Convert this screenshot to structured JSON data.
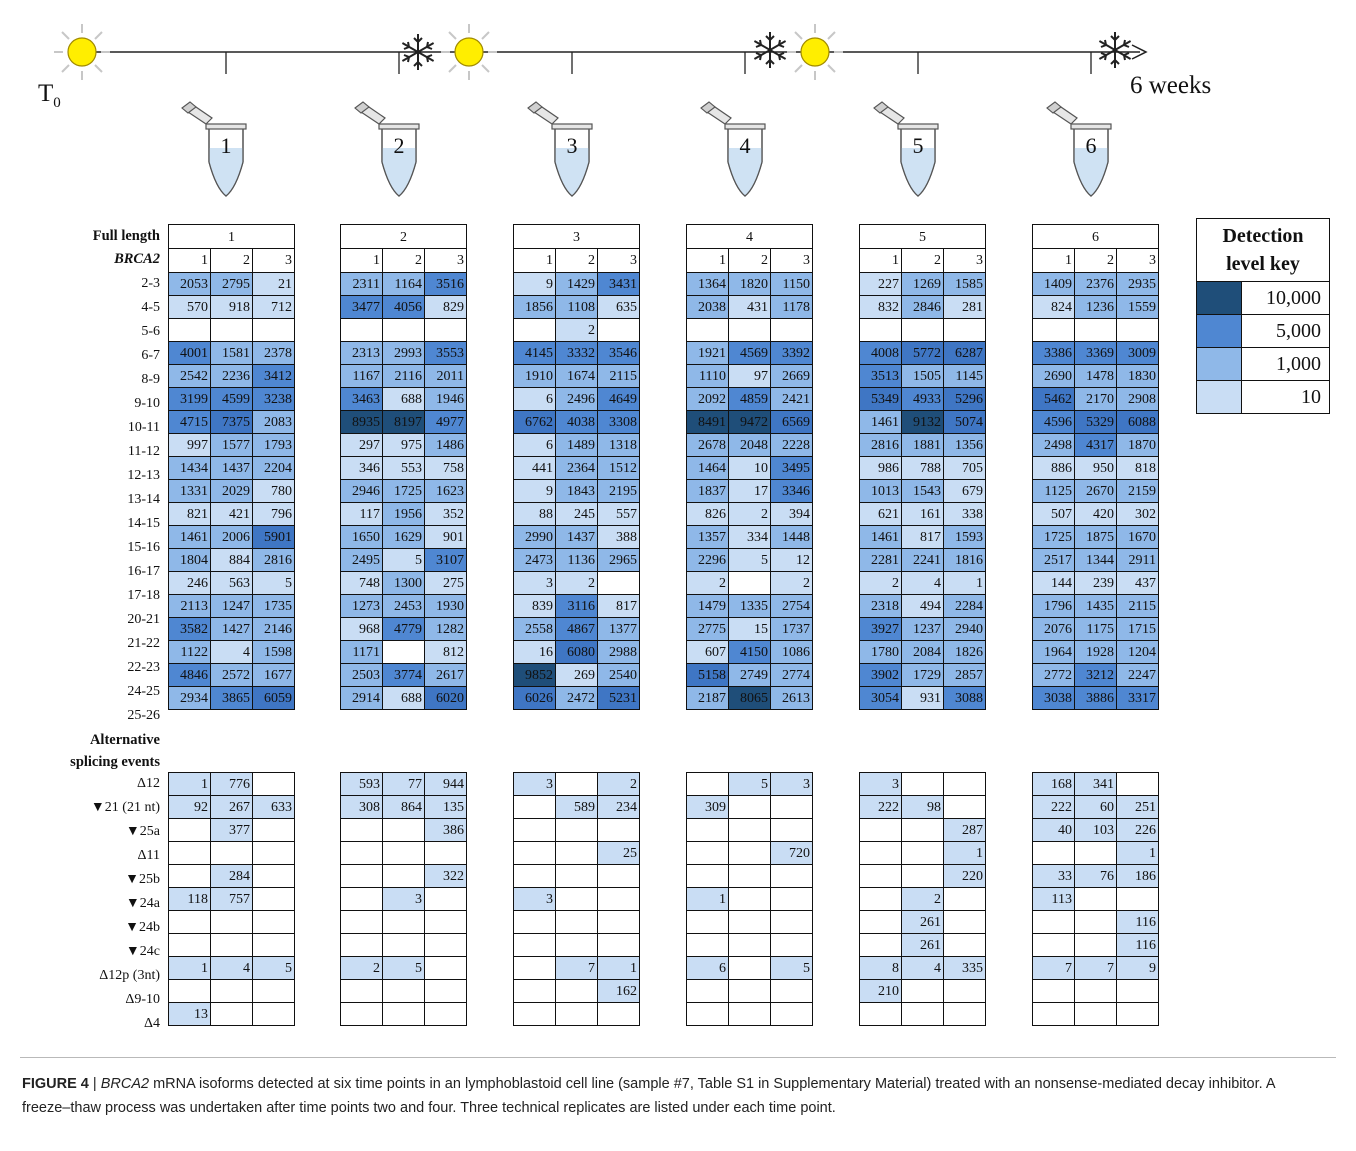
{
  "timeline": {
    "start_label": "T",
    "start_sub": "0",
    "end_label": "6 weeks",
    "tube_labels": [
      "1",
      "2",
      "3",
      "4",
      "5",
      "6"
    ],
    "icons": [
      "sun-icon",
      "snowflake-icon",
      "tube-icon",
      "arrow-icon"
    ]
  },
  "table": {
    "section_full_length": [
      "Full length",
      "BRCA2"
    ],
    "section_alt": [
      "Alternative",
      "splicing events"
    ],
    "groups": [
      "1",
      "2",
      "3",
      "4",
      "5",
      "6"
    ],
    "replicates": [
      "1",
      "2",
      "3"
    ],
    "full_rows": [
      {
        "label": "2-3",
        "values": [
          [
            "2053",
            "2795",
            "21"
          ],
          [
            "2311",
            "1164",
            "3516"
          ],
          [
            "9",
            "1429",
            "3431"
          ],
          [
            "1364",
            "1820",
            "1150"
          ],
          [
            "227",
            "1269",
            "1585"
          ],
          [
            "1409",
            "2376",
            "2935"
          ]
        ]
      },
      {
        "label": "4-5",
        "values": [
          [
            "570",
            "918",
            "712"
          ],
          [
            "3477",
            "4056",
            "829"
          ],
          [
            "1856",
            "1108",
            "635"
          ],
          [
            "2038",
            "431",
            "1178"
          ],
          [
            "832",
            "2846",
            "281"
          ],
          [
            "824",
            "1236",
            "1559"
          ]
        ]
      },
      {
        "label": "5-6",
        "values": [
          [
            "",
            "",
            ""
          ],
          [
            "",
            "",
            ""
          ],
          [
            "",
            "2",
            ""
          ],
          [
            "",
            "",
            ""
          ],
          [
            "",
            "",
            ""
          ],
          [
            "",
            "",
            ""
          ]
        ]
      },
      {
        "label": "6-7",
        "values": [
          [
            "4001",
            "1581",
            "2378"
          ],
          [
            "2313",
            "2993",
            "3553"
          ],
          [
            "4145",
            "3332",
            "3546"
          ],
          [
            "1921",
            "4569",
            "3392"
          ],
          [
            "4008",
            "5772",
            "6287"
          ],
          [
            "3386",
            "3369",
            "3009"
          ]
        ]
      },
      {
        "label": "8-9",
        "values": [
          [
            "2542",
            "2236",
            "3412"
          ],
          [
            "1167",
            "2116",
            "2011"
          ],
          [
            "1910",
            "1674",
            "2115"
          ],
          [
            "1110",
            "97",
            "2669"
          ],
          [
            "3513",
            "1505",
            "1145"
          ],
          [
            "2690",
            "1478",
            "1830"
          ]
        ]
      },
      {
        "label": "9-10",
        "values": [
          [
            "3199",
            "4599",
            "3238"
          ],
          [
            "3463",
            "688",
            "1946"
          ],
          [
            "6",
            "2496",
            "4649"
          ],
          [
            "2092",
            "4859",
            "2421"
          ],
          [
            "5349",
            "4933",
            "5296"
          ],
          [
            "5462",
            "2170",
            "2908"
          ]
        ]
      },
      {
        "label": "10-11",
        "values": [
          [
            "4715",
            "7375",
            "2083"
          ],
          [
            "8935",
            "8197",
            "4977"
          ],
          [
            "6762",
            "4038",
            "3308"
          ],
          [
            "8491",
            "9472",
            "6569"
          ],
          [
            "1461",
            "9132",
            "5074"
          ],
          [
            "4596",
            "5329",
            "6088"
          ]
        ]
      },
      {
        "label": "11-12",
        "values": [
          [
            "997",
            "1577",
            "1793"
          ],
          [
            "297",
            "975",
            "1486"
          ],
          [
            "6",
            "1489",
            "1318"
          ],
          [
            "2678",
            "2048",
            "2228"
          ],
          [
            "2816",
            "1881",
            "1356"
          ],
          [
            "2498",
            "4317",
            "1870"
          ]
        ]
      },
      {
        "label": "12-13",
        "values": [
          [
            "1434",
            "1437",
            "2204"
          ],
          [
            "346",
            "553",
            "758"
          ],
          [
            "441",
            "2364",
            "1512"
          ],
          [
            "1464",
            "10",
            "3495"
          ],
          [
            "986",
            "788",
            "705"
          ],
          [
            "886",
            "950",
            "818"
          ]
        ]
      },
      {
        "label": "13-14",
        "values": [
          [
            "1331",
            "2029",
            "780"
          ],
          [
            "2946",
            "1725",
            "1623"
          ],
          [
            "9",
            "1843",
            "2195"
          ],
          [
            "1837",
            "17",
            "3346"
          ],
          [
            "1013",
            "1543",
            "679"
          ],
          [
            "1125",
            "2670",
            "2159"
          ]
        ]
      },
      {
        "label": "14-15",
        "values": [
          [
            "821",
            "421",
            "796"
          ],
          [
            "117",
            "1956",
            "352"
          ],
          [
            "88",
            "245",
            "557"
          ],
          [
            "826",
            "2",
            "394"
          ],
          [
            "621",
            "161",
            "338"
          ],
          [
            "507",
            "420",
            "302"
          ]
        ]
      },
      {
        "label": "15-16",
        "values": [
          [
            "1461",
            "2006",
            "5901"
          ],
          [
            "1650",
            "1629",
            "901"
          ],
          [
            "2990",
            "1437",
            "388"
          ],
          [
            "1357",
            "334",
            "1448"
          ],
          [
            "1461",
            "817",
            "1593"
          ],
          [
            "1725",
            "1875",
            "1670"
          ]
        ]
      },
      {
        "label": "16-17",
        "values": [
          [
            "1804",
            "884",
            "2816"
          ],
          [
            "2495",
            "5",
            "3107"
          ],
          [
            "2473",
            "1136",
            "2965"
          ],
          [
            "2296",
            "5",
            "12"
          ],
          [
            "2281",
            "2241",
            "1816"
          ],
          [
            "2517",
            "1344",
            "2911"
          ]
        ]
      },
      {
        "label": "17-18",
        "values": [
          [
            "246",
            "563",
            "5"
          ],
          [
            "748",
            "1300",
            "275"
          ],
          [
            "3",
            "2",
            ""
          ],
          [
            "2",
            "",
            "2"
          ],
          [
            "2",
            "4",
            "1"
          ],
          [
            "144",
            "239",
            "437"
          ]
        ]
      },
      {
        "label": "20-21",
        "values": [
          [
            "2113",
            "1247",
            "1735"
          ],
          [
            "1273",
            "2453",
            "1930"
          ],
          [
            "839",
            "3116",
            "817"
          ],
          [
            "1479",
            "1335",
            "2754"
          ],
          [
            "2318",
            "494",
            "2284"
          ],
          [
            "1796",
            "1435",
            "2115"
          ]
        ]
      },
      {
        "label": "21-22",
        "values": [
          [
            "3582",
            "1427",
            "2146"
          ],
          [
            "968",
            "4779",
            "1282"
          ],
          [
            "2558",
            "4867",
            "1377"
          ],
          [
            "2775",
            "15",
            "1737"
          ],
          [
            "3927",
            "1237",
            "2940"
          ],
          [
            "2076",
            "1175",
            "1715"
          ]
        ]
      },
      {
        "label": "22-23",
        "values": [
          [
            "1122",
            "4",
            "1598"
          ],
          [
            "1171",
            "",
            "812"
          ],
          [
            "16",
            "6080",
            "2988"
          ],
          [
            "607",
            "4150",
            "1086"
          ],
          [
            "1780",
            "2084",
            "1826"
          ],
          [
            "1964",
            "1928",
            "1204"
          ]
        ]
      },
      {
        "label": "24-25",
        "values": [
          [
            "4846",
            "2572",
            "1677"
          ],
          [
            "2503",
            "3774",
            "2617"
          ],
          [
            "9852",
            "269",
            "2540"
          ],
          [
            "5158",
            "2749",
            "2774"
          ],
          [
            "3902",
            "1729",
            "2857"
          ],
          [
            "2772",
            "3212",
            "2247"
          ]
        ]
      },
      {
        "label": "25-26",
        "values": [
          [
            "2934",
            "3865",
            "6059"
          ],
          [
            "2914",
            "688",
            "6020"
          ],
          [
            "6026",
            "2472",
            "5231"
          ],
          [
            "2187",
            "8065",
            "2613"
          ],
          [
            "3054",
            "931",
            "3088"
          ],
          [
            "3038",
            "3886",
            "3317"
          ]
        ]
      }
    ],
    "alt_rows": [
      {
        "label": "Δ12",
        "values": [
          [
            "1",
            "776",
            ""
          ],
          [
            "593",
            "77",
            "944"
          ],
          [
            "3",
            "",
            "2"
          ],
          [
            "",
            "5",
            "3"
          ],
          [
            "3",
            "",
            ""
          ],
          [
            "168",
            "341",
            ""
          ]
        ]
      },
      {
        "label": "▼21 (21 nt)",
        "values": [
          [
            "92",
            "267",
            "633"
          ],
          [
            "308",
            "864",
            "135"
          ],
          [
            "",
            "589",
            "234"
          ],
          [
            "309",
            "",
            ""
          ],
          [
            "222",
            "98",
            ""
          ],
          [
            "222",
            "60",
            "251"
          ]
        ]
      },
      {
        "label": "▼25a",
        "values": [
          [
            "",
            "377",
            ""
          ],
          [
            "",
            "",
            "386"
          ],
          [
            "",
            "",
            ""
          ],
          [
            "",
            "",
            ""
          ],
          [
            "",
            "",
            "287"
          ],
          [
            "40",
            "103",
            "226"
          ]
        ]
      },
      {
        "label": "Δ11",
        "values": [
          [
            "",
            "",
            ""
          ],
          [
            "",
            "",
            ""
          ],
          [
            "",
            "",
            "25"
          ],
          [
            "",
            "",
            "720"
          ],
          [
            "",
            "",
            "1"
          ],
          [
            "",
            "",
            "1"
          ]
        ]
      },
      {
        "label": "▼25b",
        "values": [
          [
            "",
            "284",
            ""
          ],
          [
            "",
            "",
            "322"
          ],
          [
            "",
            "",
            ""
          ],
          [
            "",
            "",
            ""
          ],
          [
            "",
            "",
            "220"
          ],
          [
            "33",
            "76",
            "186"
          ]
        ]
      },
      {
        "label": "▼24a",
        "values": [
          [
            "118",
            "757",
            ""
          ],
          [
            "",
            "3",
            ""
          ],
          [
            "3",
            "",
            ""
          ],
          [
            "1",
            "",
            ""
          ],
          [
            "",
            "2",
            ""
          ],
          [
            "113",
            "",
            ""
          ]
        ]
      },
      {
        "label": "▼24b",
        "values": [
          [
            "",
            "",
            ""
          ],
          [
            "",
            "",
            ""
          ],
          [
            "",
            "",
            ""
          ],
          [
            "",
            "",
            ""
          ],
          [
            "",
            "261",
            ""
          ],
          [
            "",
            "",
            "116"
          ]
        ]
      },
      {
        "label": "▼24c",
        "values": [
          [
            "",
            "",
            ""
          ],
          [
            "",
            "",
            ""
          ],
          [
            "",
            "",
            ""
          ],
          [
            "",
            "",
            ""
          ],
          [
            "",
            "261",
            ""
          ],
          [
            "",
            "",
            "116"
          ]
        ]
      },
      {
        "label": "Δ12p (3nt)",
        "values": [
          [
            "1",
            "4",
            "5"
          ],
          [
            "2",
            "5",
            ""
          ],
          [
            "",
            "7",
            "1"
          ],
          [
            "6",
            "",
            "5"
          ],
          [
            "8",
            "4",
            "335"
          ],
          [
            "7",
            "7",
            "9"
          ]
        ]
      },
      {
        "label": "Δ9-10",
        "values": [
          [
            "",
            "",
            ""
          ],
          [
            "",
            "",
            ""
          ],
          [
            "",
            "",
            "162"
          ],
          [
            "",
            "",
            ""
          ],
          [
            "210",
            "",
            ""
          ],
          [
            "",
            "",
            ""
          ]
        ]
      },
      {
        "label": "Δ4",
        "values": [
          [
            "13",
            "",
            ""
          ],
          [
            "",
            "",
            ""
          ],
          [
            "",
            "",
            ""
          ],
          [
            "",
            "",
            ""
          ],
          [
            "",
            "",
            ""
          ],
          [
            "",
            "",
            ""
          ]
        ]
      }
    ]
  },
  "key": {
    "title": [
      "Detection",
      "level key"
    ],
    "levels": [
      "10,000",
      "5,000",
      "1,000",
      "10"
    ],
    "colors": [
      "#1f4e79",
      "#4f87d2",
      "#8fb8e8",
      "#c9ddf4"
    ]
  },
  "caption": {
    "label": "FIGURE 4",
    "separator": " | ",
    "gene": "BRCA2",
    "text": " mRNA isoforms detected at six time points in an lymphoblastoid cell line (sample #7, Table S1 in Supplementary Material) treated with an nonsense-mediated decay inhibitor. A freeze–thaw process was undertaken after time points two and four. Three technical replicates are listed under each time point."
  }
}
